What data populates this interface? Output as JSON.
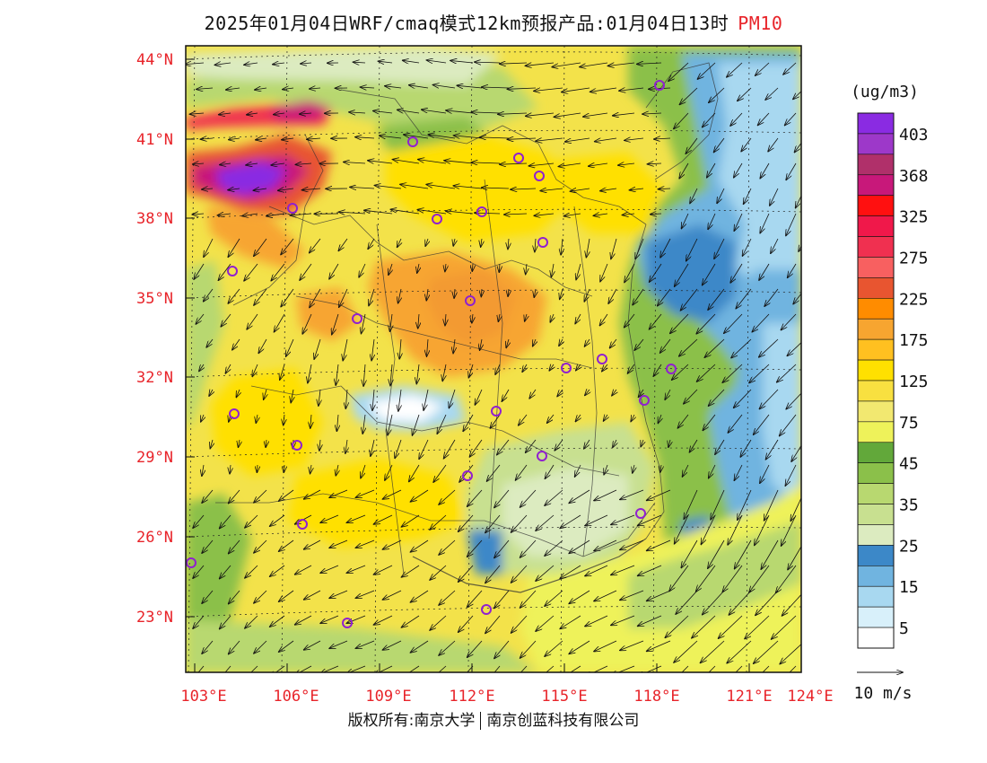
{
  "title": {
    "text": "2025年01月04日WRF/cmaq模式12km预报产品:01月04日13时",
    "pollutant": "PM10"
  },
  "lat_labels": [
    "44°N",
    "41°N",
    "38°N",
    "35°N",
    "32°N",
    "29°N",
    "26°N",
    "23°N"
  ],
  "lon_labels": [
    "103°E",
    "106°E",
    "109°E",
    "112°E",
    "115°E",
    "118°E",
    "121°E",
    "124°E"
  ],
  "legend": {
    "unit": "(ug/m3)",
    "levels": [
      {
        "label": "403",
        "color": "#8a2be2"
      },
      {
        "label": "",
        "color": "#9d38c9"
      },
      {
        "label": "368",
        "color": "#b0306a"
      },
      {
        "label": "",
        "color": "#c8187a"
      },
      {
        "label": "325",
        "color": "#ff1010"
      },
      {
        "label": "",
        "color": "#f0184a"
      },
      {
        "label": "275",
        "color": "#f03050"
      },
      {
        "label": "",
        "color": "#f86060"
      },
      {
        "label": "225",
        "color": "#e85530"
      },
      {
        "label": "",
        "color": "#ff8c00"
      },
      {
        "label": "175",
        "color": "#f7a530"
      },
      {
        "label": "",
        "color": "#ffc020"
      },
      {
        "label": "125",
        "color": "#ffe000"
      },
      {
        "label": "",
        "color": "#f8e040"
      },
      {
        "label": "75",
        "color": "#f2e870"
      },
      {
        "label": "",
        "color": "#eef25a"
      },
      {
        "label": "45",
        "color": "#62a83a"
      },
      {
        "label": "",
        "color": "#8bc04a"
      },
      {
        "label": "35",
        "color": "#b8d870"
      },
      {
        "label": "",
        "color": "#c8e090"
      },
      {
        "label": "25",
        "color": "#dcebc0"
      },
      {
        "label": "",
        "color": "#3c88c8"
      },
      {
        "label": "15",
        "color": "#70b4e0"
      },
      {
        "label": "",
        "color": "#a8d8f0"
      },
      {
        "label": "5",
        "color": "#d8f0fa"
      },
      {
        "label": "",
        "color": "#ffffff"
      }
    ]
  },
  "wind_ref": {
    "label": "10 m/s"
  },
  "copyright": {
    "left": "版权所有:南京大学",
    "right": "南京创蓝科技有限公司"
  },
  "colors": {
    "label_red": "#e8242a",
    "station_marker": "#9020d0"
  }
}
